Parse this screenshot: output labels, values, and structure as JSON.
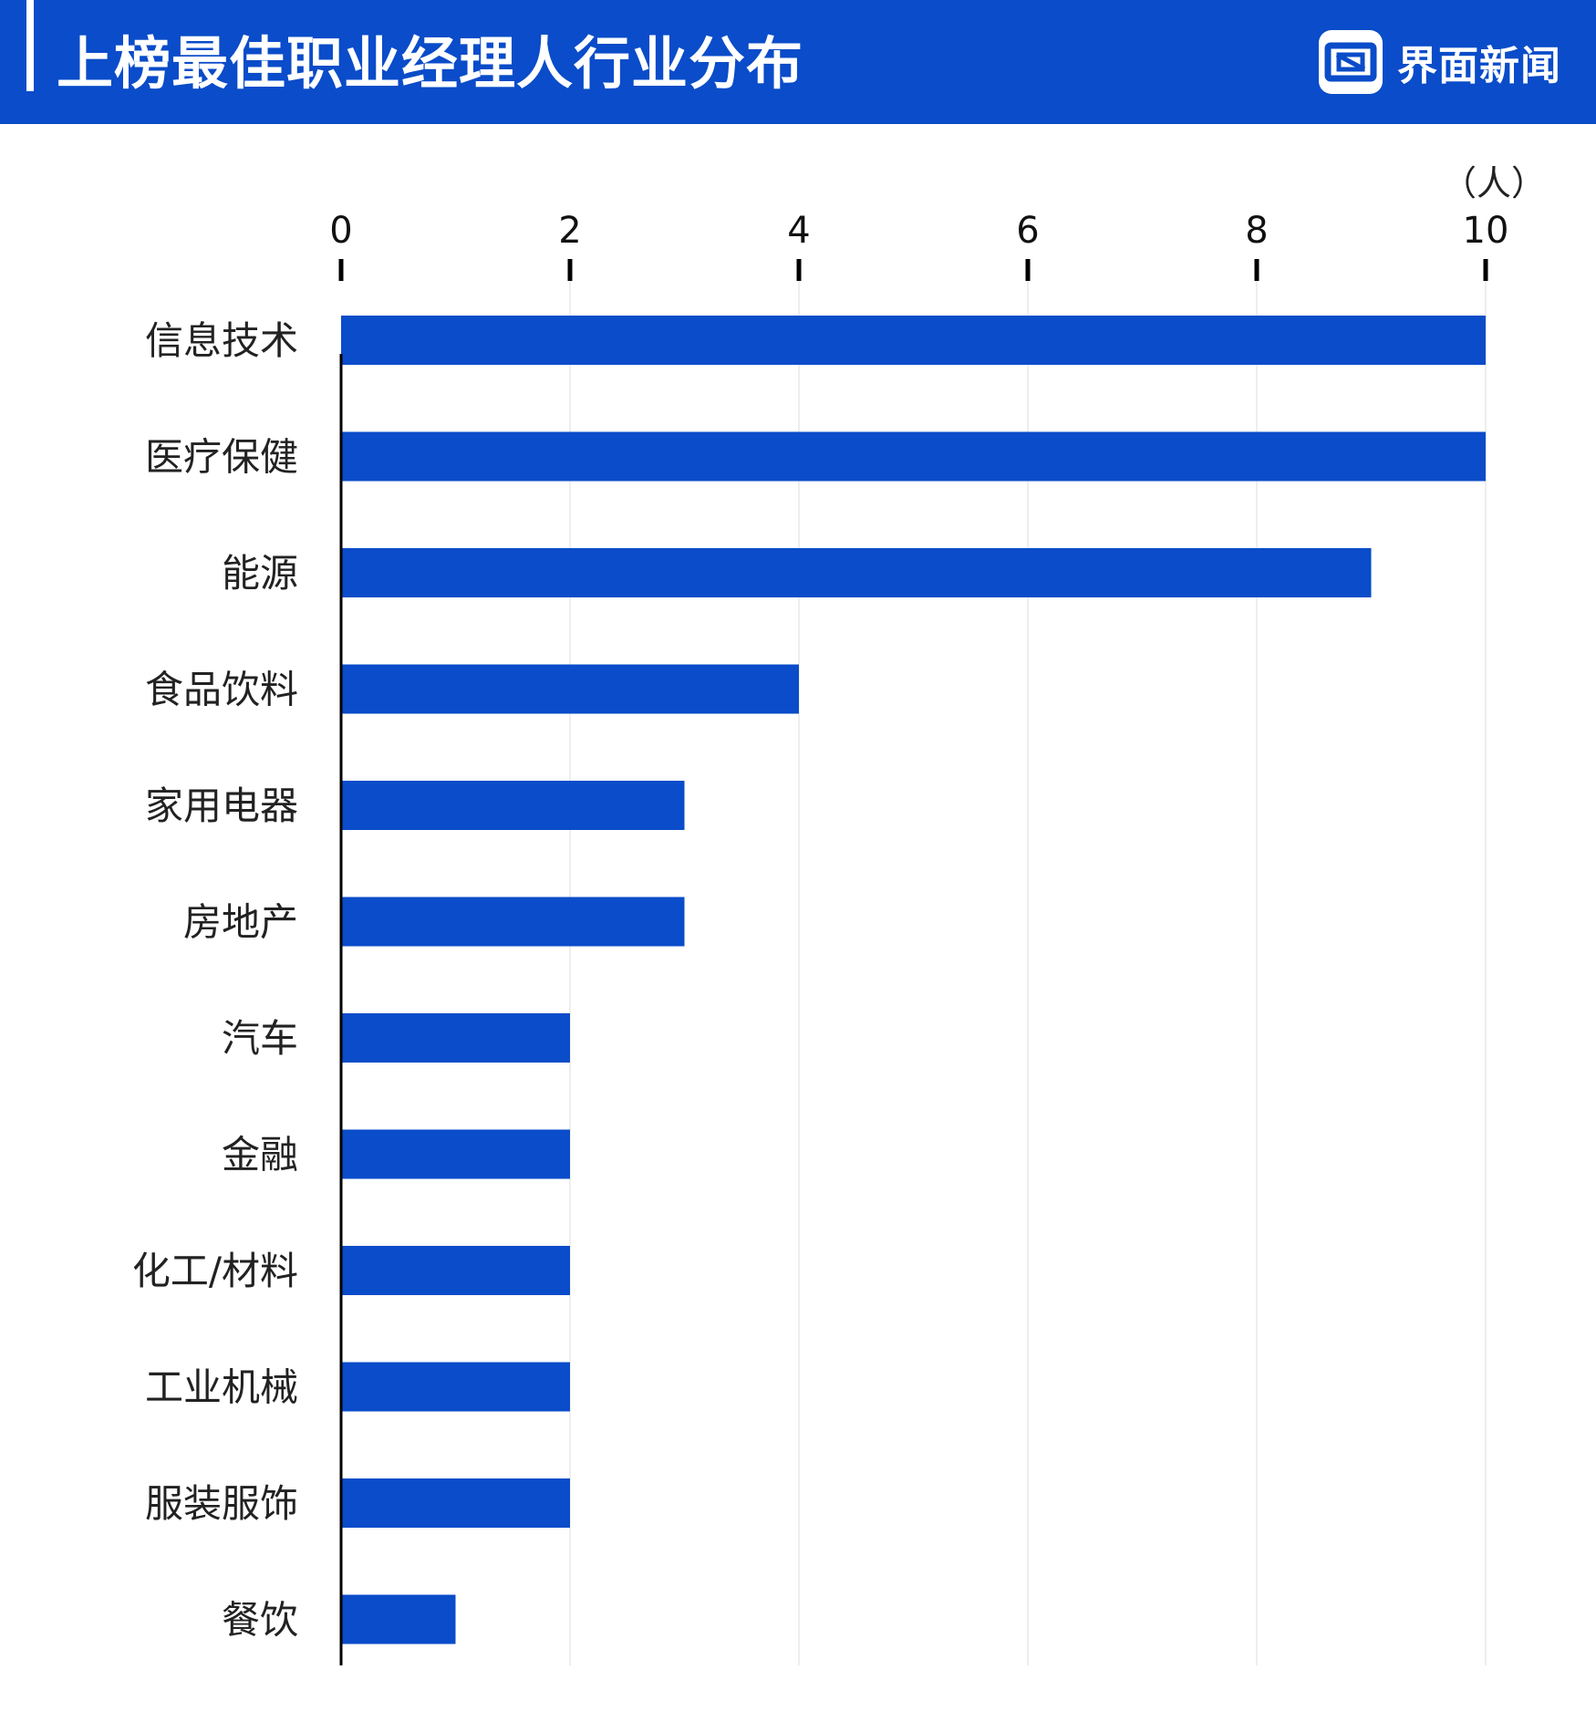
{
  "header": {
    "title": "上榜最佳职业经理人行业分布",
    "brand": "界面新闻"
  },
  "colors": {
    "header_bg": "#0a4cc9",
    "bar": "#0a4cc9",
    "axis": "#000000"
  },
  "chart_data": {
    "type": "bar",
    "orientation": "horizontal",
    "title": "上榜最佳职业经理人行业分布",
    "unit": "（人）",
    "categories": [
      "信息技术",
      "医疗保健",
      "能源",
      "食品饮料",
      "家用电器",
      "房地产",
      "汽车",
      "金融",
      "化工/材料",
      "工业机械",
      "服装服饰",
      "餐饮"
    ],
    "values": [
      10,
      10,
      9,
      4,
      3,
      3,
      2,
      2,
      2,
      2,
      2,
      1
    ],
    "xlim": [
      0,
      10
    ],
    "xticks": [
      0,
      2,
      4,
      6,
      8,
      10
    ],
    "grid": true,
    "axis_position": "top"
  }
}
